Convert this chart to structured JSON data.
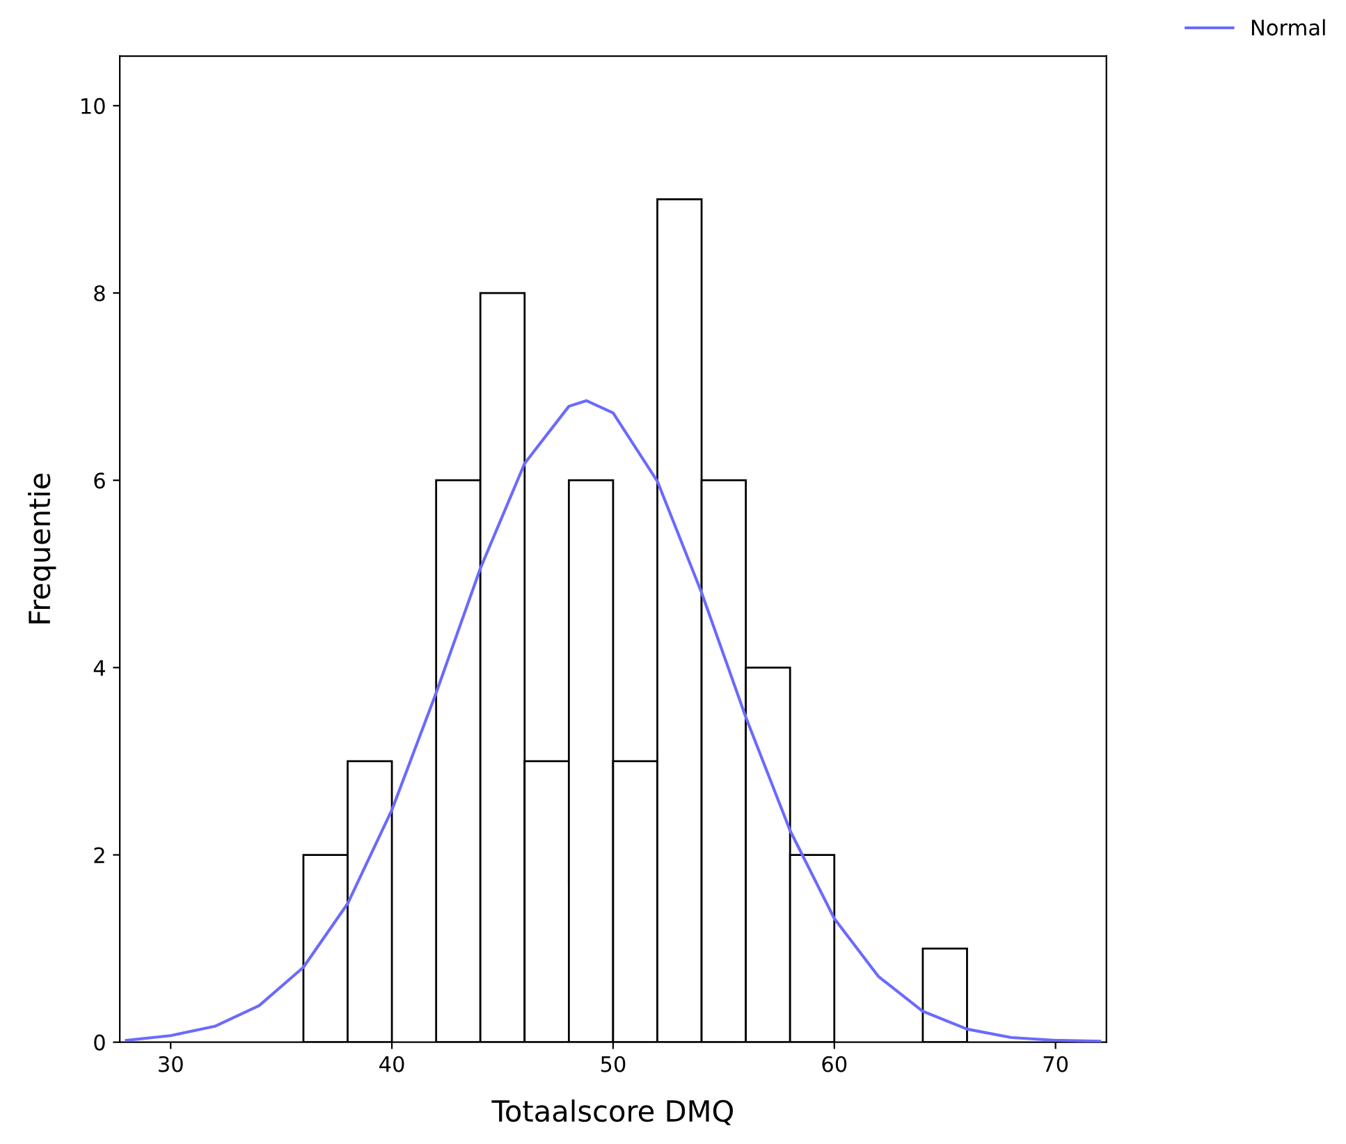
{
  "chart_data": {
    "type": "histogram",
    "xlabel": "Totaalscore DMQ",
    "ylabel": "Frequentie",
    "bins": [
      36,
      38,
      40,
      42,
      44,
      46,
      48,
      50,
      52,
      54,
      56,
      58,
      60,
      62,
      64,
      66
    ],
    "values": [
      2,
      3,
      0,
      6,
      8,
      3,
      6,
      3,
      9,
      6,
      4,
      2,
      0,
      0,
      1
    ],
    "color": "#ffffff",
    "series": [
      {
        "name": "Normal",
        "type": "line",
        "color": "#6a6aff",
        "x": [
          28,
          30,
          32,
          34,
          36,
          38,
          40,
          42,
          44,
          46,
          48,
          48.8,
          50,
          52,
          54,
          56,
          58,
          60,
          62,
          64,
          66,
          68,
          70,
          72
        ],
        "values": [
          0.02,
          0.07,
          0.17,
          0.39,
          0.8,
          1.48,
          2.48,
          3.73,
          5.06,
          6.18,
          6.79,
          6.85,
          6.72,
          5.99,
          4.8,
          3.47,
          2.26,
          1.32,
          0.7,
          0.33,
          0.14,
          0.05,
          0.02,
          0.01
        ]
      }
    ],
    "xlim": [
      27.7,
      72.3
    ],
    "ylim": [
      0,
      10.53
    ],
    "xticks": [
      30,
      40,
      50,
      60,
      70
    ],
    "yticks": [
      0,
      2,
      4,
      6,
      8,
      10
    ],
    "grid": false,
    "legend": "top right"
  }
}
